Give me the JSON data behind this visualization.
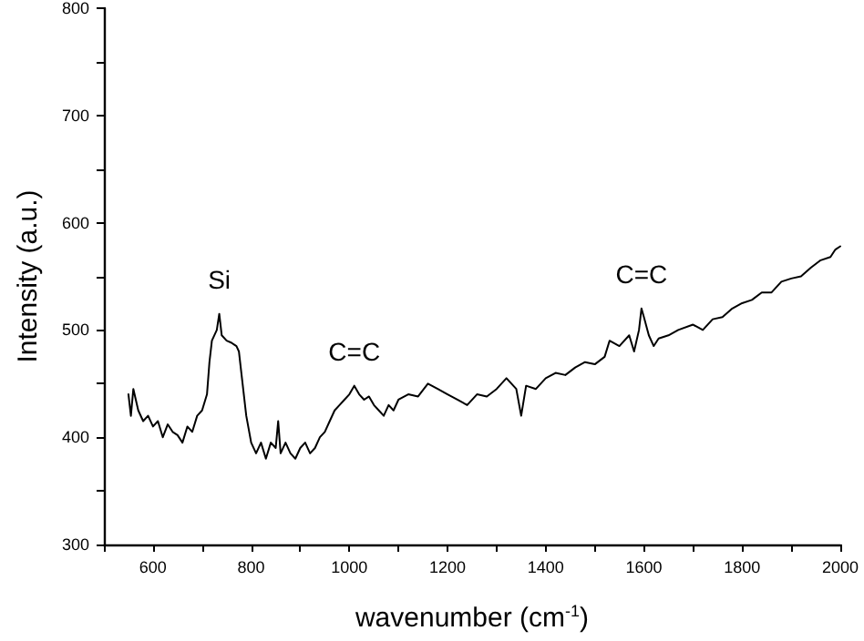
{
  "chart_data": {
    "type": "line",
    "xlabel": "wavenumber (cm$^{-1}$)",
    "ylabel": "Intensity (a.u.)",
    "xlim": [
      500,
      2000
    ],
    "ylim": [
      300,
      800
    ],
    "xticks": [
      {
        "value": 500,
        "label": null
      },
      600,
      {
        "value": 700,
        "label": null
      },
      800,
      {
        "value": 900,
        "label": null
      },
      1000,
      {
        "value": 1100,
        "label": null
      },
      1200,
      {
        "value": 1300,
        "label": null
      },
      1400,
      {
        "value": 1500,
        "label": null
      },
      1600,
      {
        "value": 1700,
        "label": null
      },
      1800,
      {
        "value": 1900,
        "label": null
      },
      2000
    ],
    "yticks": [
      300,
      {
        "value": 350,
        "label": null
      },
      400,
      {
        "value": 450,
        "label": null
      },
      500,
      {
        "value": 550,
        "label": null
      },
      600,
      {
        "value": 650,
        "label": null
      },
      700,
      {
        "value": 750,
        "label": null
      },
      800
    ],
    "grid": false,
    "marker": "none",
    "line_style": "solid",
    "annotations": [
      {
        "text": "Si",
        "x": 735,
        "y": 515
      },
      {
        "text": "C=C",
        "x": 1010,
        "y": 448
      },
      {
        "text": "C=C",
        "x": 1595,
        "y": 520
      }
    ],
    "x": [
      550,
      555,
      560,
      570,
      580,
      590,
      600,
      610,
      620,
      630,
      640,
      650,
      660,
      670,
      680,
      690,
      700,
      710,
      715,
      720,
      730,
      735,
      740,
      750,
      760,
      770,
      775,
      780,
      790,
      800,
      810,
      820,
      830,
      840,
      850,
      855,
      860,
      870,
      880,
      890,
      900,
      910,
      920,
      930,
      940,
      950,
      960,
      970,
      980,
      990,
      1000,
      1010,
      1020,
      1030,
      1040,
      1050,
      1060,
      1070,
      1080,
      1090,
      1100,
      1120,
      1140,
      1160,
      1180,
      1200,
      1220,
      1240,
      1260,
      1280,
      1300,
      1320,
      1340,
      1350,
      1360,
      1380,
      1400,
      1420,
      1440,
      1460,
      1480,
      1500,
      1520,
      1530,
      1550,
      1570,
      1580,
      1590,
      1595,
      1600,
      1610,
      1620,
      1630,
      1650,
      1670,
      1700,
      1720,
      1740,
      1760,
      1780,
      1800,
      1820,
      1840,
      1860,
      1880,
      1900,
      1920,
      1940,
      1960,
      1980,
      1990,
      2000
    ],
    "series": [
      {
        "color": "#000000",
        "values": [
          440,
          420,
          445,
          425,
          415,
          420,
          410,
          415,
          400,
          412,
          405,
          402,
          395,
          410,
          405,
          420,
          425,
          440,
          470,
          490,
          500,
          515,
          495,
          490,
          488,
          485,
          480,
          460,
          420,
          395,
          385,
          395,
          380,
          395,
          390,
          415,
          385,
          395,
          385,
          380,
          390,
          395,
          385,
          390,
          400,
          405,
          415,
          425,
          430,
          435,
          440,
          448,
          440,
          435,
          438,
          430,
          425,
          420,
          430,
          425,
          435,
          440,
          438,
          450,
          445,
          440,
          435,
          430,
          440,
          438,
          445,
          455,
          445,
          420,
          448,
          445,
          455,
          460,
          458,
          465,
          470,
          468,
          475,
          490,
          485,
          495,
          480,
          500,
          520,
          512,
          495,
          485,
          492,
          495,
          500,
          505,
          500,
          510,
          512,
          520,
          525,
          528,
          535,
          535,
          545,
          548,
          550,
          558,
          565,
          568,
          575,
          578
        ]
      }
    ]
  }
}
